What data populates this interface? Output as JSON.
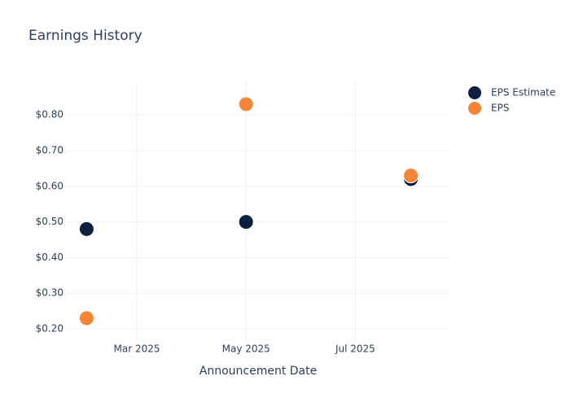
{
  "chart_data": {
    "type": "scatter",
    "title": "Earnings History",
    "x_label": "Announcement Date",
    "x": [
      "2025-02",
      "2025-05",
      "2025-08"
    ],
    "series": [
      {
        "name": "EPS Estimate",
        "color": "#0c1f3f",
        "values": [
          0.48,
          0.5,
          0.62
        ]
      },
      {
        "name": "EPS",
        "color": "#f58536",
        "values": [
          0.23,
          0.83,
          0.63
        ]
      }
    ],
    "xlim": [
      "2025-01-20",
      "2025-08-23"
    ],
    "xticks": [
      {
        "value": "2025-03",
        "label": "Mar 2025"
      },
      {
        "value": "2025-05",
        "label": "May 2025"
      },
      {
        "value": "2025-07",
        "label": "Jul 2025"
      }
    ],
    "ylim": [
      0.168,
      0.894
    ],
    "yticks": [
      {
        "value": 0.2,
        "label": "$0.20"
      },
      {
        "value": 0.3,
        "label": "$0.30"
      },
      {
        "value": 0.4,
        "label": "$0.40"
      },
      {
        "value": 0.5,
        "label": "$0.50"
      },
      {
        "value": 0.6,
        "label": "$0.60"
      },
      {
        "value": 0.7,
        "label": "$0.70"
      },
      {
        "value": 0.8,
        "label": "$0.80"
      }
    ],
    "grid": true,
    "legend": "top-right"
  }
}
